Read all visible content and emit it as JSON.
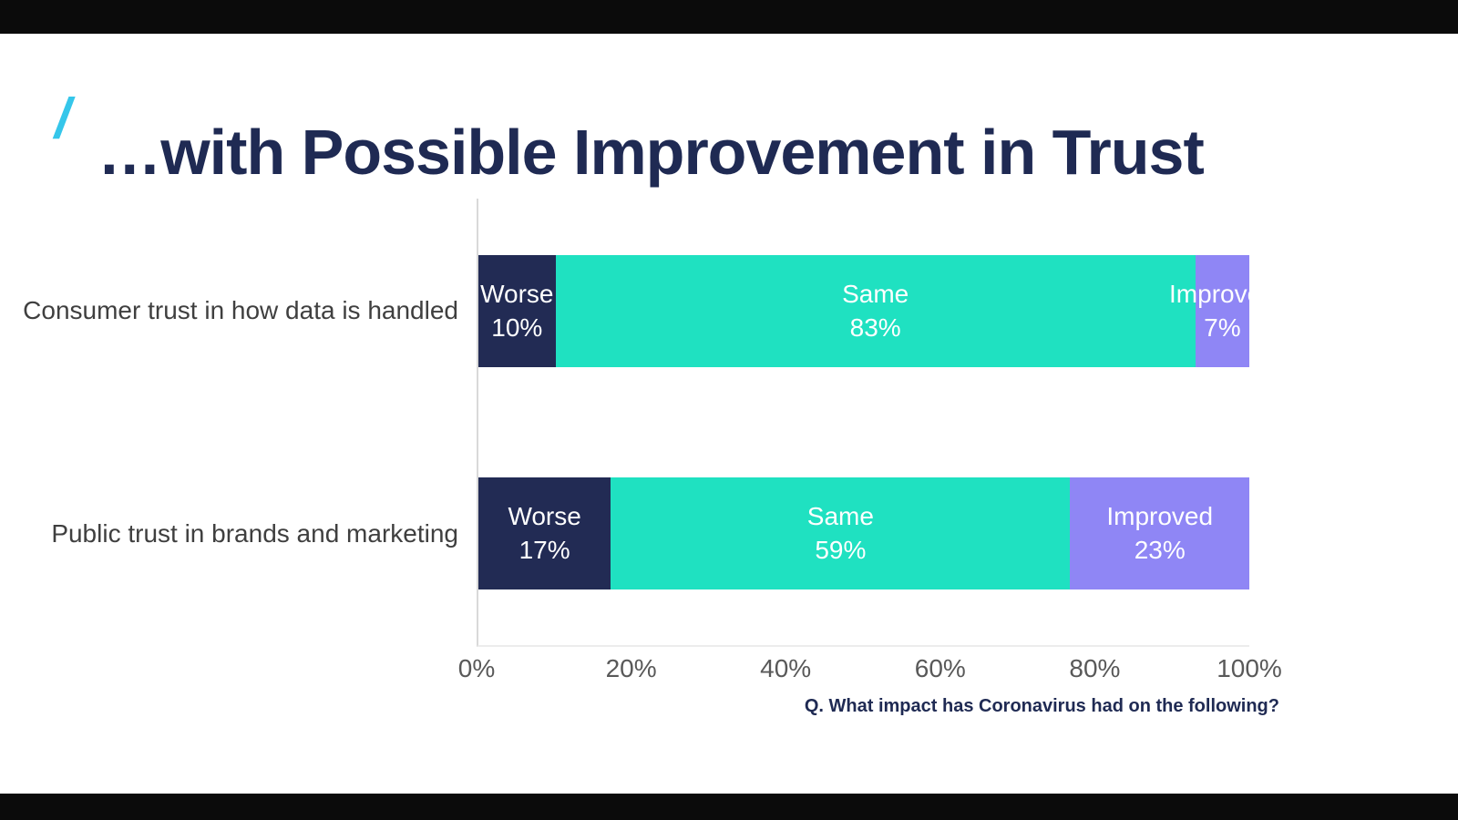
{
  "page": {
    "slash_mark": "/",
    "title": "…with Possible Improvement in Trust",
    "footnote": "Q. What impact has Coronavirus had on the following?"
  },
  "chart_data": {
    "type": "bar",
    "orientation": "horizontal",
    "stacked": true,
    "title": "",
    "categories": [
      "Consumer trust in how data is handled",
      "Public trust in brands and marketing"
    ],
    "series": [
      {
        "name": "Worse",
        "color": "#222b54",
        "values": [
          10,
          17
        ]
      },
      {
        "name": "Same",
        "color": "#1fe1c1",
        "values": [
          83,
          59
        ]
      },
      {
        "name": "Improved",
        "color": "#8f86f5",
        "values": [
          7,
          23
        ]
      }
    ],
    "value_suffix": "%",
    "x_ticks": [
      "0%",
      "20%",
      "40%",
      "60%",
      "80%",
      "100%"
    ],
    "xlim": [
      0,
      100
    ],
    "grid": false,
    "legend": "none",
    "data_labels": "series name and percent shown inside each segment",
    "annotation": "Q. What impact has Coronavirus had on the following?"
  },
  "colors": {
    "accent_slash": "#35c6ea",
    "title_text": "#1f2a53",
    "bar_worse": "#222b54",
    "bar_same": "#1fe1c1",
    "bar_improved": "#8f86f5",
    "axis_line": "#d9d9d9",
    "tick_text": "#595959",
    "category_text": "#3f3f3f",
    "top_bottom_bands": "#0b0b0b"
  }
}
